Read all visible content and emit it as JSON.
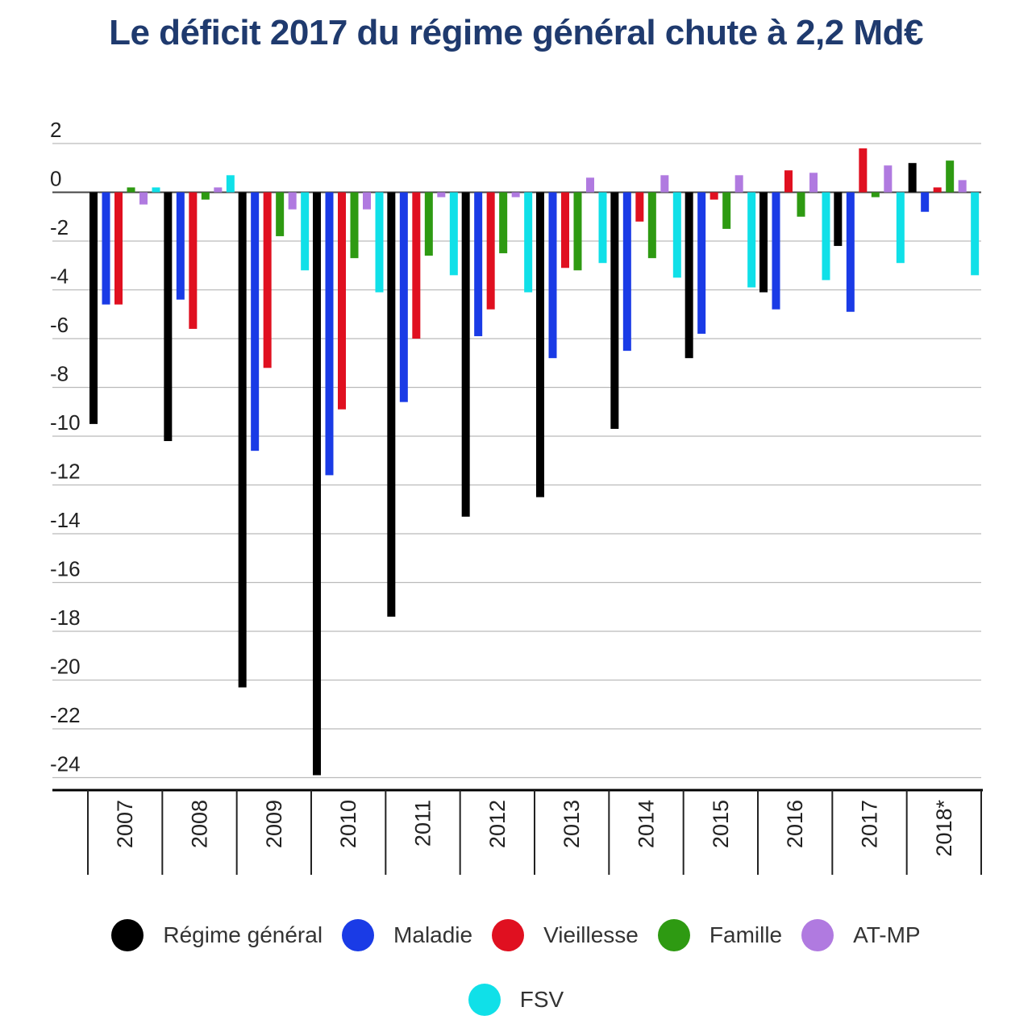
{
  "chart_data": {
    "type": "bar",
    "title": "Le déficit 2017 du régime général chute à 2,2 Md€",
    "xlabel": "",
    "ylabel": "",
    "ylim": [
      -24,
      2
    ],
    "yticks": [
      2,
      0,
      -2,
      -4,
      -6,
      -8,
      -10,
      -12,
      -14,
      -16,
      -18,
      -20,
      -22,
      -24
    ],
    "grid": true,
    "legend_placement": "bottom",
    "categories": [
      "2007",
      "2008",
      "2009",
      "2010",
      "2011",
      "2012",
      "2013",
      "2014",
      "2015",
      "2016",
      "2017",
      "2018*"
    ],
    "series": [
      {
        "name": "Régime général",
        "color": "#000000",
        "values": [
          -9.5,
          -10.2,
          -20.3,
          -23.9,
          -17.4,
          -13.3,
          -12.5,
          -9.7,
          -6.8,
          -4.1,
          -2.2,
          1.2
        ]
      },
      {
        "name": "Maladie",
        "color": "#1a3be6",
        "values": [
          -4.6,
          -4.4,
          -10.6,
          -11.6,
          -8.6,
          -5.9,
          -6.8,
          -6.5,
          -5.8,
          -4.8,
          -4.9,
          -0.8
        ]
      },
      {
        "name": "Vieillesse",
        "color": "#e01020",
        "values": [
          -4.6,
          -5.6,
          -7.2,
          -8.9,
          -6.0,
          -4.8,
          -3.1,
          -1.2,
          -0.3,
          0.9,
          1.8,
          0.2
        ]
      },
      {
        "name": "Famille",
        "color": "#2e9a12",
        "values": [
          0.2,
          -0.3,
          -1.8,
          -2.7,
          -2.6,
          -2.5,
          -3.2,
          -2.7,
          -1.5,
          -1.0,
          -0.2,
          1.3
        ]
      },
      {
        "name": "AT-MP",
        "color": "#b07ae0",
        "values": [
          -0.5,
          0.2,
          -0.7,
          -0.7,
          -0.2,
          -0.2,
          0.6,
          0.7,
          0.7,
          0.8,
          1.1,
          0.5
        ]
      },
      {
        "name": "FSV",
        "color": "#10e0e8",
        "values": [
          0.2,
          0.7,
          -3.2,
          -4.1,
          -3.4,
          -4.1,
          -2.9,
          -3.5,
          -3.9,
          -3.6,
          -2.9,
          -3.4
        ]
      }
    ]
  }
}
